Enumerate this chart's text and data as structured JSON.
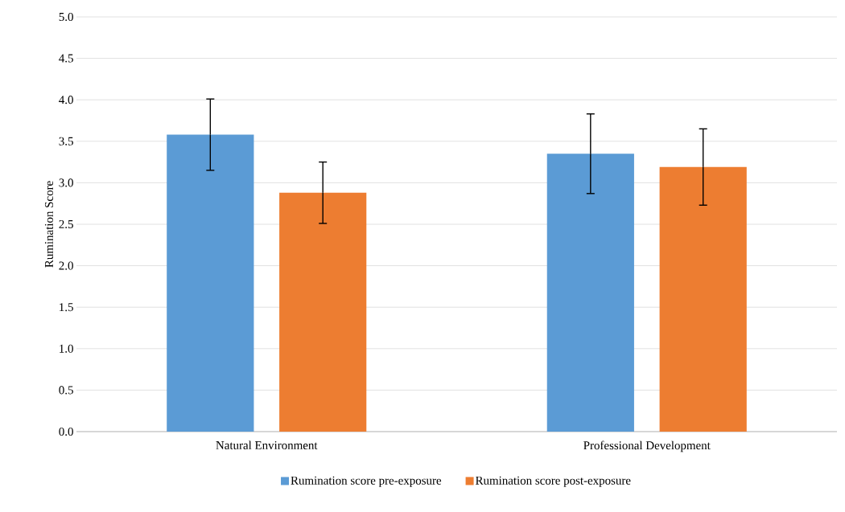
{
  "chart_data": {
    "type": "bar",
    "ylabel": "Rumination Score",
    "categories": [
      "Natural Environment",
      "Professional Development"
    ],
    "series": [
      {
        "name": "Rumination score pre-exposure",
        "color": "#5b9bd5",
        "values": [
          3.58,
          3.35
        ],
        "errors": [
          0.43,
          0.48
        ]
      },
      {
        "name": "Rumination score post-exposure",
        "color": "#ed7d31",
        "values": [
          2.88,
          3.19
        ],
        "errors": [
          0.37,
          0.46
        ]
      }
    ],
    "ylim": [
      0,
      5
    ],
    "yticks": [
      {
        "value": 0,
        "label": "0.0"
      },
      0.5,
      {
        "value": 1,
        "label": "1.0"
      },
      1.5,
      {
        "value": 2,
        "label": "2.0"
      },
      2.5,
      {
        "value": 3,
        "label": "3.0"
      },
      3.5,
      {
        "value": 4,
        "label": "4.0"
      },
      4.5,
      {
        "value": 5,
        "label": "5.0"
      }
    ],
    "grid": "y",
    "legend": "bottom"
  }
}
